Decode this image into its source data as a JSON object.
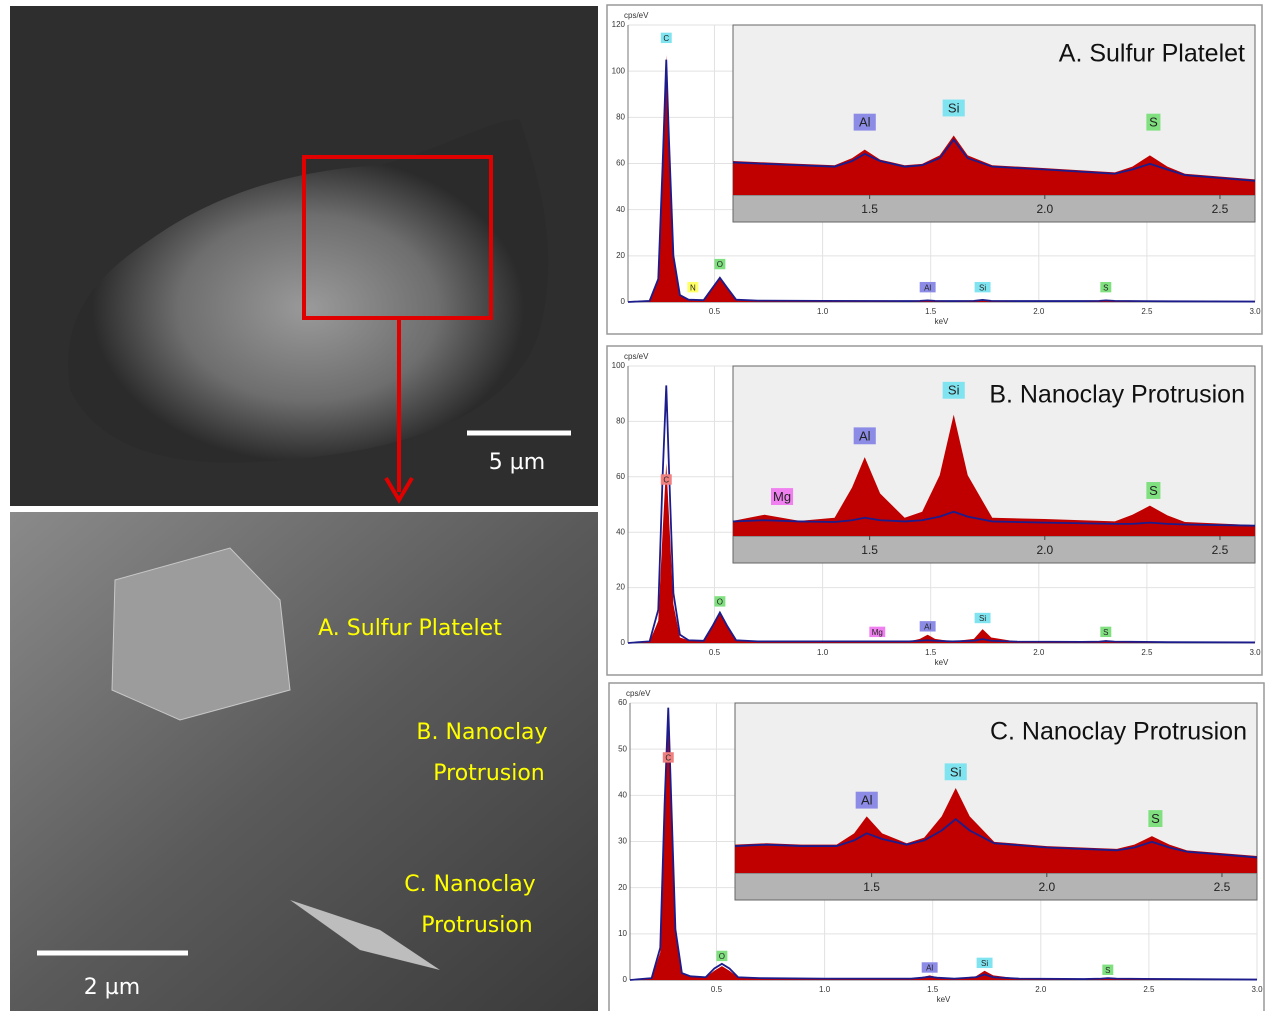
{
  "images": {
    "overview": {
      "scale_bar": "5 µm"
    },
    "detail": {
      "scale_bar": "2 µm",
      "labels": [
        "A. Sulfur Platelet",
        "B. Nanoclay",
        "Protrusion",
        "C. Nanoclay",
        "Protrusion"
      ]
    }
  },
  "chart_data": [
    {
      "type": "area",
      "title": "A. Sulfur Platelet",
      "ylabel": "cps/eV",
      "xlabel": "keV",
      "xlim": [
        0.1,
        3.0
      ],
      "ylim": [
        0,
        120
      ],
      "xticks": [
        0.5,
        {
          "value": 1,
          "label": "1.0"
        },
        1.5,
        {
          "value": 2,
          "label": "2.0"
        },
        2.5,
        {
          "value": 3,
          "label": "3.0"
        }
      ],
      "yticks": [
        0,
        20,
        40,
        60,
        80,
        100,
        120
      ],
      "grid": true,
      "x": [
        0.1,
        0.2,
        0.24,
        0.26,
        0.277,
        0.29,
        0.31,
        0.34,
        0.38,
        0.45,
        0.49,
        0.525,
        0.56,
        0.6,
        0.7,
        1.0,
        1.4,
        1.45,
        1.486,
        1.52,
        1.6,
        1.7,
        1.74,
        1.78,
        1.9,
        2.2,
        2.28,
        2.31,
        2.35,
        2.6,
        3.0
      ],
      "series": [
        {
          "color": "#c00000",
          "values": [
            0,
            0.5,
            10,
            60,
            107,
            70,
            20,
            3,
            1,
            0.8,
            6,
            10,
            6,
            1,
            0.6,
            0.5,
            0.4,
            0.5,
            0.8,
            0.5,
            0.4,
            0.5,
            1,
            0.5,
            0.4,
            0.4,
            0.5,
            0.8,
            0.5,
            0.3,
            0.2
          ]
        },
        {
          "color": "#1c1c8c",
          "values": [
            0,
            0.5,
            10,
            59,
            105,
            69,
            20,
            3,
            1,
            0.8,
            6,
            10.5,
            6,
            1,
            0.6,
            0.5,
            0.4,
            0.5,
            0.7,
            0.5,
            0.4,
            0.5,
            0.9,
            0.5,
            0.4,
            0.4,
            0.5,
            0.7,
            0.5,
            0.3,
            0.2
          ]
        }
      ],
      "annotations": [
        {
          "text": "C",
          "x": 0.277,
          "y": 112,
          "color": "#80e4f0"
        },
        {
          "text": "N",
          "x": 0.4,
          "y": 4,
          "color": "#ffff66"
        },
        {
          "text": "O",
          "x": 0.525,
          "y": 14,
          "color": "#80e080"
        },
        {
          "text": "Al",
          "x": 1.486,
          "y": 4,
          "color": "#8c8ce6"
        },
        {
          "text": "Si",
          "x": 1.74,
          "y": 4,
          "color": "#80e4f0"
        },
        {
          "text": "S",
          "x": 2.31,
          "y": 4,
          "color": "#80e080"
        }
      ],
      "inset": {
        "xlim": [
          1.11,
          2.6
        ],
        "ylim": [
          0,
          12
        ],
        "xticks": [
          1.5,
          {
            "value": 2,
            "label": "2.0"
          },
          2.5
        ],
        "x": [
          1.11,
          1.2,
          1.3,
          1.4,
          1.45,
          1.486,
          1.53,
          1.6,
          1.65,
          1.7,
          1.74,
          1.78,
          1.85,
          2.0,
          2.2,
          2.25,
          2.3,
          2.35,
          2.4,
          2.6
        ],
        "series": [
          {
            "color": "#c00000",
            "values": [
              2.4,
              2.3,
              2.2,
              2.1,
              2.6,
              3.2,
              2.5,
              2.1,
              2.2,
              2.8,
              4.2,
              2.8,
              2.1,
              1.9,
              1.6,
              2.0,
              2.8,
              2.0,
              1.5,
              1.1
            ]
          },
          {
            "color": "#1c1c8c",
            "values": [
              2.3,
              2.2,
              2.1,
              2.0,
              2.4,
              2.9,
              2.4,
              2.0,
              2.1,
              2.6,
              3.9,
              2.6,
              2.0,
              1.8,
              1.5,
              1.8,
              2.2,
              1.8,
              1.4,
              1.0
            ]
          }
        ],
        "annotations": [
          {
            "text": "Al",
            "x": 1.486,
            "y": 4.5,
            "color": "#8c8ce6"
          },
          {
            "text": "Si",
            "x": 1.74,
            "y": 5.5,
            "color": "#80e4f0"
          },
          {
            "text": "S",
            "x": 2.31,
            "y": 4.5,
            "color": "#80e080"
          }
        ]
      }
    },
    {
      "type": "area",
      "title": "B. Nanoclay Protrusion",
      "ylabel": "cps/eV",
      "xlabel": "keV",
      "xlim": [
        0.1,
        3.0
      ],
      "ylim": [
        0,
        100
      ],
      "xticks": [
        0.5,
        {
          "value": 1,
          "label": "1.0"
        },
        1.5,
        {
          "value": 2,
          "label": "2.0"
        },
        2.5,
        {
          "value": 3,
          "label": "3.0"
        }
      ],
      "yticks": [
        0,
        20,
        40,
        60,
        80,
        100
      ],
      "grid": true,
      "x": [
        0.1,
        0.2,
        0.24,
        0.26,
        0.277,
        0.29,
        0.31,
        0.34,
        0.38,
        0.45,
        0.49,
        0.525,
        0.56,
        0.6,
        0.7,
        1.0,
        1.4,
        1.45,
        1.486,
        1.52,
        1.6,
        1.7,
        1.74,
        1.78,
        1.9,
        2.2,
        2.28,
        2.31,
        2.35,
        2.6,
        3.0
      ],
      "series": [
        {
          "color": "#c00000",
          "values": [
            0,
            0.5,
            8,
            40,
            65,
            45,
            14,
            2,
            1,
            0.8,
            6,
            11,
            6,
            1,
            0.6,
            0.6,
            0.6,
            1.5,
            3,
            1.5,
            0.6,
            1.5,
            5,
            2,
            0.5,
            0.4,
            0.6,
            1,
            0.5,
            0.3,
            0.2
          ]
        },
        {
          "color": "#1c1c8c",
          "values": [
            0,
            0.6,
            12,
            60,
            93,
            62,
            18,
            3,
            1,
            0.8,
            6,
            11,
            6,
            1,
            0.6,
            0.6,
            0.6,
            0.8,
            1,
            0.8,
            0.6,
            0.8,
            1.4,
            0.8,
            0.5,
            0.4,
            0.5,
            0.7,
            0.5,
            0.3,
            0.2
          ]
        }
      ],
      "annotations": [
        {
          "text": "C",
          "x": 0.277,
          "y": 57,
          "color": "#f08080"
        },
        {
          "text": "O",
          "x": 0.525,
          "y": 13,
          "color": "#80e080"
        },
        {
          "text": "Mg",
          "x": 1.253,
          "y": 2,
          "color": "#f080f0"
        },
        {
          "text": "Al",
          "x": 1.486,
          "y": 4,
          "color": "#8c8ce6"
        },
        {
          "text": "Si",
          "x": 1.74,
          "y": 7,
          "color": "#80e4f0"
        },
        {
          "text": "S",
          "x": 2.31,
          "y": 2,
          "color": "#80e080"
        }
      ],
      "inset": {
        "xlim": [
          1.11,
          2.6
        ],
        "ylim": [
          0,
          28
        ],
        "xticks": [
          1.5,
          {
            "value": 2,
            "label": "2.0"
          },
          2.5
        ],
        "x": [
          1.11,
          1.2,
          1.3,
          1.4,
          1.45,
          1.486,
          1.53,
          1.6,
          1.65,
          1.7,
          1.74,
          1.78,
          1.85,
          2.0,
          2.2,
          2.25,
          2.3,
          2.35,
          2.4,
          2.6
        ],
        "series": [
          {
            "color": "#c00000",
            "values": [
              2.5,
              3.5,
              2.5,
              3,
              8,
              13,
              7,
              3,
              4,
              10,
              20,
              10,
              3,
              2.8,
              2.4,
              3.5,
              5,
              3.4,
              2.3,
              1.8
            ]
          },
          {
            "color": "#1c1c8c",
            "values": [
              2.4,
              2.6,
              2.4,
              2.3,
              2.6,
              3,
              2.6,
              2.4,
              2.6,
              3.2,
              4,
              3.2,
              2.4,
              2.2,
              2,
              2,
              2.2,
              2,
              1.9,
              1.7
            ]
          }
        ],
        "annotations": [
          {
            "text": "Mg",
            "x": 1.25,
            "y": 5,
            "color": "#f080f0"
          },
          {
            "text": "Al",
            "x": 1.486,
            "y": 15,
            "color": "#8c8ce6"
          },
          {
            "text": "Si",
            "x": 1.74,
            "y": 22.5,
            "color": "#80e4f0"
          },
          {
            "text": "S",
            "x": 2.31,
            "y": 6,
            "color": "#80e080"
          }
        ]
      }
    },
    {
      "type": "area",
      "title": "C. Nanoclay Protrusion",
      "ylabel": "cps/eV",
      "xlabel": "keV",
      "xlim": [
        0.1,
        3.0
      ],
      "ylim": [
        0,
        60
      ],
      "xticks": [
        0.5,
        {
          "value": 1,
          "label": "1.0"
        },
        1.5,
        {
          "value": 2,
          "label": "2.0"
        },
        2.5,
        {
          "value": 3,
          "label": "3.0"
        }
      ],
      "yticks": [
        0,
        10,
        20,
        30,
        40,
        50,
        60
      ],
      "grid": true,
      "x": [
        0.1,
        0.2,
        0.24,
        0.26,
        0.277,
        0.29,
        0.31,
        0.34,
        0.38,
        0.45,
        0.49,
        0.525,
        0.56,
        0.6,
        0.7,
        1.0,
        1.4,
        1.45,
        1.486,
        1.52,
        1.6,
        1.7,
        1.74,
        1.78,
        1.9,
        2.2,
        2.28,
        2.31,
        2.35,
        2.6,
        3.0
      ],
      "series": [
        {
          "color": "#c00000",
          "values": [
            0,
            0.4,
            6,
            35,
            57,
            38,
            10,
            1.5,
            0.8,
            0.6,
            2,
            3,
            2,
            0.6,
            0.4,
            0.3,
            0.3,
            0.6,
            1,
            0.6,
            0.3,
            0.8,
            2,
            1,
            0.3,
            0.2,
            0.3,
            0.5,
            0.3,
            0.2,
            0.1
          ]
        },
        {
          "color": "#1c1c8c",
          "values": [
            0,
            0.4,
            7,
            38,
            59,
            40,
            11,
            1.5,
            0.8,
            0.6,
            2.5,
            3.5,
            2.5,
            0.6,
            0.4,
            0.3,
            0.3,
            0.5,
            0.7,
            0.5,
            0.3,
            0.6,
            1.2,
            0.6,
            0.3,
            0.2,
            0.3,
            0.4,
            0.3,
            0.2,
            0.1
          ]
        }
      ],
      "annotations": [
        {
          "text": "C",
          "x": 0.277,
          "y": 47,
          "color": "#f08080"
        },
        {
          "text": "O",
          "x": 0.525,
          "y": 4,
          "color": "#80e080"
        },
        {
          "text": "Al",
          "x": 1.486,
          "y": 1.5,
          "color": "#8c8ce6"
        },
        {
          "text": "Si",
          "x": 1.74,
          "y": 2.5,
          "color": "#80e4f0"
        },
        {
          "text": "S",
          "x": 2.31,
          "y": 1,
          "color": "#80e080"
        }
      ],
      "inset": {
        "xlim": [
          1.11,
          2.6
        ],
        "ylim": [
          0,
          12
        ],
        "xticks": [
          1.5,
          {
            "value": 2,
            "label": "2.0"
          },
          2.5
        ],
        "x": [
          1.11,
          1.2,
          1.3,
          1.4,
          1.45,
          1.486,
          1.53,
          1.6,
          1.65,
          1.7,
          1.74,
          1.78,
          1.85,
          2.0,
          2.2,
          2.25,
          2.3,
          2.35,
          2.4,
          2.6
        ],
        "series": [
          {
            "color": "#c00000",
            "values": [
              2,
              2.1,
              2,
              2,
              2.8,
              4,
              2.8,
              2.1,
              2.5,
              4,
              6,
              4,
              2.2,
              1.9,
              1.7,
              2,
              2.6,
              2,
              1.6,
              1.2
            ]
          },
          {
            "color": "#1c1c8c",
            "values": [
              1.9,
              2,
              1.9,
              1.9,
              2.3,
              2.8,
              2.4,
              2,
              2.3,
              3,
              3.8,
              3,
              2.1,
              1.8,
              1.6,
              1.8,
              2.2,
              1.8,
              1.5,
              1.1
            ]
          }
        ],
        "annotations": [
          {
            "text": "Al",
            "x": 1.486,
            "y": 4.5,
            "color": "#8c8ce6"
          },
          {
            "text": "Si",
            "x": 1.74,
            "y": 6.5,
            "color": "#80e4f0"
          },
          {
            "text": "S",
            "x": 2.31,
            "y": 3.2,
            "color": "#80e080"
          }
        ]
      }
    }
  ]
}
